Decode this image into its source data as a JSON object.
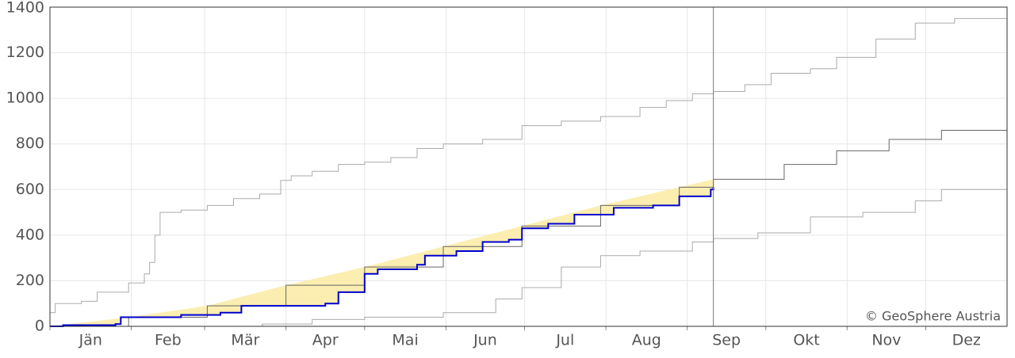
{
  "chart_data": {
    "type": "cumulative-step",
    "credit": "© GeoSphere Austria",
    "xlim": [
      0,
      365
    ],
    "xticks": [
      {
        "value": 0,
        "label": "Jän"
      },
      {
        "value": 31,
        "label": "Feb"
      },
      {
        "value": 59,
        "label": "Mär"
      },
      {
        "value": 90,
        "label": "Apr"
      },
      {
        "value": 120,
        "label": "Mai"
      },
      {
        "value": 151,
        "label": "Jun"
      },
      {
        "value": 181,
        "label": "Jul"
      },
      {
        "value": 212,
        "label": "Aug"
      },
      {
        "value": 243,
        "label": "Sep"
      },
      {
        "value": 273,
        "label": "Okt"
      },
      {
        "value": 304,
        "label": "Nov"
      },
      {
        "value": 334,
        "label": "Dez"
      }
    ],
    "ylim": [
      0,
      1400
    ],
    "yticks": [
      0,
      200,
      400,
      600,
      800,
      1000,
      1200,
      1400
    ],
    "grid": true,
    "today_x": 253,
    "fill_color": "#fbeeb0",
    "series": [
      {
        "color": "#aaaaaa",
        "x": [
          0,
          2,
          12,
          18,
          30,
          36,
          38,
          40,
          42,
          50,
          60,
          70,
          80,
          88,
          92,
          100,
          110,
          120,
          130,
          140,
          150,
          165,
          180,
          195,
          210,
          225,
          235,
          245,
          253,
          265,
          275,
          290,
          300,
          315,
          330,
          345,
          365
        ],
        "values": [
          60,
          100,
          110,
          150,
          190,
          230,
          280,
          400,
          500,
          510,
          530,
          560,
          580,
          640,
          660,
          680,
          710,
          720,
          740,
          780,
          800,
          820,
          880,
          900,
          920,
          960,
          990,
          1020,
          1030,
          1060,
          1110,
          1130,
          1180,
          1260,
          1330,
          1350,
          1360
        ]
      },
      {
        "color": "#666666",
        "x": [
          0,
          30,
          60,
          90,
          120,
          150,
          180,
          210,
          240,
          253,
          280,
          300,
          320,
          340,
          365
        ],
        "values": [
          0,
          40,
          90,
          180,
          260,
          350,
          440,
          530,
          610,
          645,
          710,
          770,
          820,
          860,
          905
        ]
      },
      {
        "color": "#aaaaaa",
        "x": [
          0,
          81,
          100,
          120,
          150,
          170,
          180,
          195,
          210,
          225,
          245,
          253,
          270,
          290,
          310,
          330,
          340,
          365
        ],
        "values": [
          0,
          10,
          30,
          40,
          60,
          120,
          170,
          260,
          310,
          330,
          370,
          385,
          410,
          480,
          500,
          550,
          600,
          600
        ]
      },
      {
        "color": "#0000cc",
        "x": [
          0,
          5,
          25,
          27,
          40,
          50,
          65,
          73,
          95,
          105,
          110,
          120,
          125,
          140,
          143,
          155,
          165,
          175,
          180,
          190,
          200,
          215,
          230,
          240,
          252,
          253
        ],
        "values": [
          0,
          5,
          10,
          40,
          40,
          50,
          60,
          90,
          90,
          100,
          150,
          230,
          250,
          270,
          310,
          330,
          370,
          380,
          430,
          450,
          490,
          520,
          530,
          570,
          600,
          610
        ]
      }
    ]
  }
}
